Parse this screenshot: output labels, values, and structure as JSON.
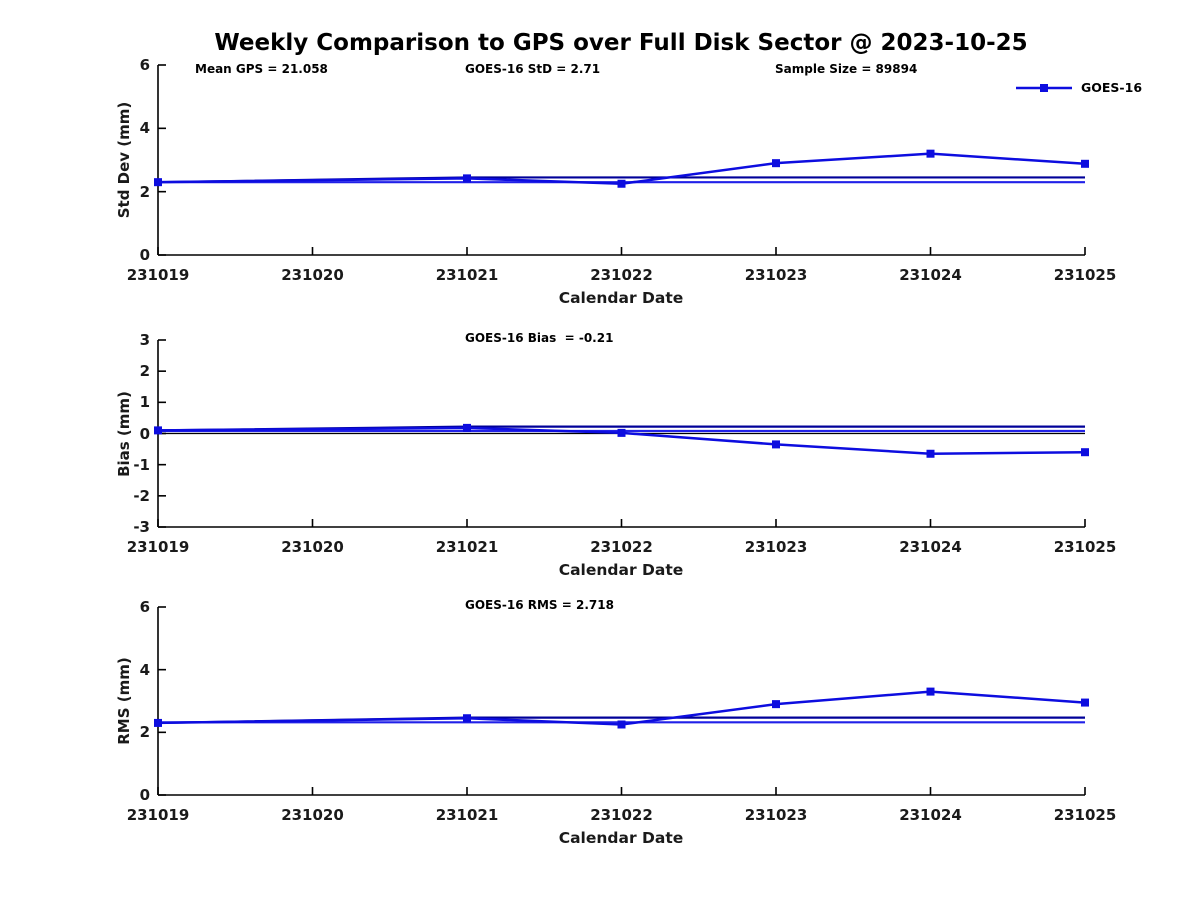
{
  "title": "Weekly Comparison to GPS over Full Disk Sector @ 2023-10-25",
  "legend": {
    "label": "GOES-16",
    "position": "top-right"
  },
  "colors": {
    "series": "#0d0ddf",
    "ref_navy": "#000099",
    "ref_blue": "#2121e8",
    "zero_line": "#000000",
    "axis": "#000000",
    "text": "#1a1a1a"
  },
  "chart_data": [
    {
      "type": "line",
      "ylabel": "Std Dev (mm)",
      "xlabel": "Calendar Date",
      "ylim": [
        0,
        6
      ],
      "yticks": [
        0,
        2,
        4,
        6
      ],
      "xticks": [
        "231019",
        "231020",
        "231021",
        "231022",
        "231023",
        "231024",
        "231025"
      ],
      "grid": false,
      "annotations": [
        {
          "text": "Mean GPS = 21.058",
          "x": 195
        },
        {
          "text": "GOES-16 StD = 2.71",
          "x": 465
        },
        {
          "text": "Sample Size = 89894",
          "x": 775
        }
      ],
      "series": [
        {
          "name": "GOES-16",
          "role": "data",
          "marker": "square",
          "color_key": "series",
          "x": [
            231019,
            231021,
            231022,
            231023,
            231024,
            231025
          ],
          "y": [
            2.3,
            2.42,
            2.25,
            2.9,
            3.2,
            2.88
          ]
        },
        {
          "name": "weekly-ref-upper",
          "role": "reference",
          "marker": "none",
          "color_key": "ref_navy",
          "x": [
            231019,
            231021,
            231025
          ],
          "y": [
            2.3,
            2.45,
            2.45
          ]
        },
        {
          "name": "weekly-ref-lower",
          "role": "reference",
          "marker": "none",
          "color_key": "ref_blue",
          "x": [
            231019,
            231025
          ],
          "y": [
            2.3,
            2.3
          ]
        }
      ]
    },
    {
      "type": "line",
      "ylabel": "Bias (mm)",
      "xlabel": "Calendar Date",
      "ylim": [
        -3,
        3
      ],
      "yticks": [
        -3,
        -2,
        -1,
        0,
        1,
        2,
        3
      ],
      "xticks": [
        "231019",
        "231020",
        "231021",
        "231022",
        "231023",
        "231024",
        "231025"
      ],
      "grid": false,
      "annotations": [
        {
          "text": "GOES-16 Bias  = -0.21",
          "x": 465
        }
      ],
      "series": [
        {
          "name": "GOES-16",
          "role": "data",
          "marker": "square",
          "color_key": "series",
          "x": [
            231019,
            231021,
            231022,
            231023,
            231024,
            231025
          ],
          "y": [
            0.1,
            0.18,
            0.02,
            -0.35,
            -0.65,
            -0.6
          ]
        },
        {
          "name": "weekly-ref-upper",
          "role": "reference",
          "marker": "none",
          "color_key": "ref_navy",
          "x": [
            231019,
            231021,
            231025
          ],
          "y": [
            0.1,
            0.22,
            0.22
          ]
        },
        {
          "name": "weekly-ref-lower",
          "role": "reference",
          "marker": "none",
          "color_key": "ref_blue",
          "x": [
            231019,
            231025
          ],
          "y": [
            0.08,
            0.08
          ]
        },
        {
          "name": "zero-line",
          "role": "reference",
          "marker": "none",
          "color_key": "zero_line",
          "width": 1.2,
          "x": [
            231019,
            231025
          ],
          "y": [
            0,
            0
          ]
        }
      ]
    },
    {
      "type": "line",
      "ylabel": "RMS (mm)",
      "xlabel": "Calendar Date",
      "ylim": [
        0,
        6
      ],
      "yticks": [
        0,
        2,
        4,
        6
      ],
      "xticks": [
        "231019",
        "231020",
        "231021",
        "231022",
        "231023",
        "231024",
        "231025"
      ],
      "grid": false,
      "annotations": [
        {
          "text": "GOES-16 RMS = 2.718",
          "x": 465
        }
      ],
      "series": [
        {
          "name": "GOES-16",
          "role": "data",
          "marker": "square",
          "color_key": "series",
          "x": [
            231019,
            231021,
            231022,
            231023,
            231024,
            231025
          ],
          "y": [
            2.3,
            2.45,
            2.25,
            2.9,
            3.3,
            2.95
          ]
        },
        {
          "name": "weekly-ref-upper",
          "role": "reference",
          "marker": "none",
          "color_key": "ref_navy",
          "x": [
            231019,
            231021,
            231025
          ],
          "y": [
            2.3,
            2.47,
            2.47
          ]
        },
        {
          "name": "weekly-ref-lower",
          "role": "reference",
          "marker": "none",
          "color_key": "ref_blue",
          "x": [
            231019,
            231025
          ],
          "y": [
            2.32,
            2.32
          ]
        }
      ]
    }
  ]
}
